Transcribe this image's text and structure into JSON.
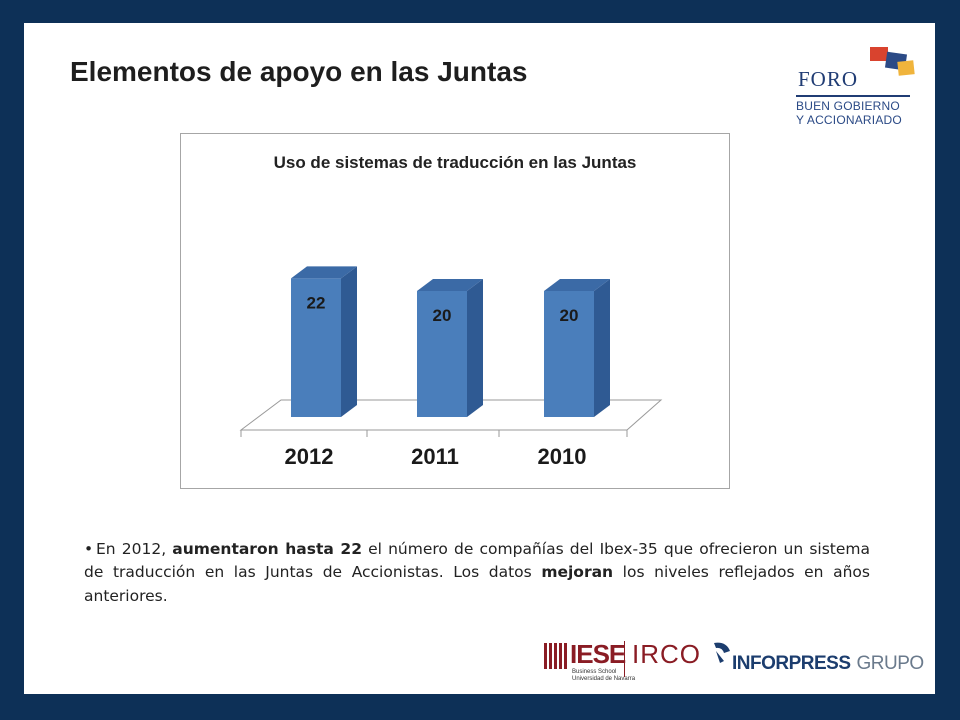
{
  "slide": {
    "title": "Elementos de apoyo en las Juntas"
  },
  "logo_foro": {
    "name": "FORO",
    "line1": "BUEN GOBIERNO",
    "line2": "Y ACCIONARIADO"
  },
  "chart_data": {
    "type": "bar",
    "title": "Uso de sistemas de traducción en las Juntas",
    "categories": [
      "2012",
      "2011",
      "2010"
    ],
    "values": [
      22,
      20,
      20
    ],
    "data_labels": [
      "22",
      "20",
      "20"
    ],
    "style": "3d-cylinder-bars",
    "bar_color": "#4a7ebb",
    "grid": false,
    "legend": "none"
  },
  "bullet": {
    "p1": "En 2012, ",
    "b1": "aumentaron hasta 22",
    "p2": " el número de compañías del Ibex-35 que ofrecieron un sistema de traducción en las Juntas de Accionistas. Los datos ",
    "b2": "mejoran",
    "p3": " los niveles reflejados en años anteriores."
  },
  "footer": {
    "iese": "IESE",
    "iese_sub": "Business School",
    "iese_sub2": "Universidad de Navarra",
    "irco": "IRCO",
    "inforpress": "INFORPRESS",
    "grupo": "GRUPO"
  },
  "colors": {
    "frame": "#0d3057",
    "bar": "#4a7ebb",
    "bar_side": "#2f5a93",
    "bar_top": "#3b6aa6",
    "iese_red": "#8a1c24",
    "foro_blue": "#203c74"
  }
}
